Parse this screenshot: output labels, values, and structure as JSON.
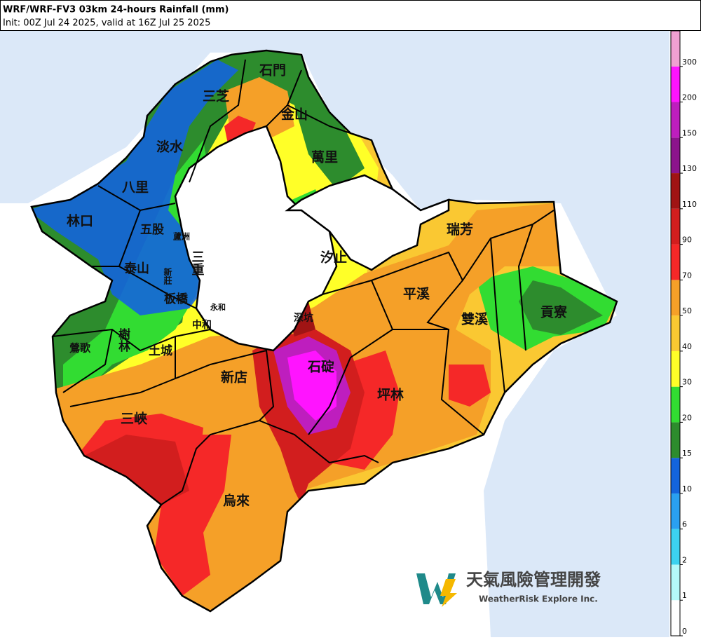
{
  "header": {
    "title": "WRF/WRF-FV3 03km 24-hours Rainfall (mm)",
    "subtitle": "Init: 00Z Jul 24 2025, valid at 16Z Jul 25 2025"
  },
  "map": {
    "districts": [
      "石門",
      "三芝",
      "金山",
      "淡水",
      "萬里",
      "八里",
      "林口",
      "五股",
      "蘆洲",
      "三重",
      "泰山",
      "新莊",
      "汐止",
      "瑞芳",
      "平溪",
      "板橋",
      "永和",
      "深坑",
      "中和",
      "雙溪",
      "貢寮",
      "樹林",
      "鶯歌",
      "土城",
      "石碇",
      "新店",
      "坪林",
      "三峽",
      "烏來"
    ]
  },
  "colorbar": {
    "ticks": [
      0,
      1,
      2,
      6,
      10,
      15,
      20,
      30,
      40,
      50,
      70,
      90,
      110,
      130,
      150,
      200,
      300
    ],
    "colors": [
      "#ffffff",
      "#b4fafa",
      "#3cd2f0",
      "#2aa0f0",
      "#1464dc",
      "#2d8c2d",
      "#32dc32",
      "#ffff28",
      "#fac832",
      "#f5a028",
      "#f52828",
      "#d21e1e",
      "#a01414",
      "#8c148c",
      "#be1ebe",
      "#ff14ff",
      "#f0a0d2"
    ]
  },
  "logo": {
    "name": "天氣風險管理開發",
    "tagline": "WeatherRisk Explore Inc."
  }
}
